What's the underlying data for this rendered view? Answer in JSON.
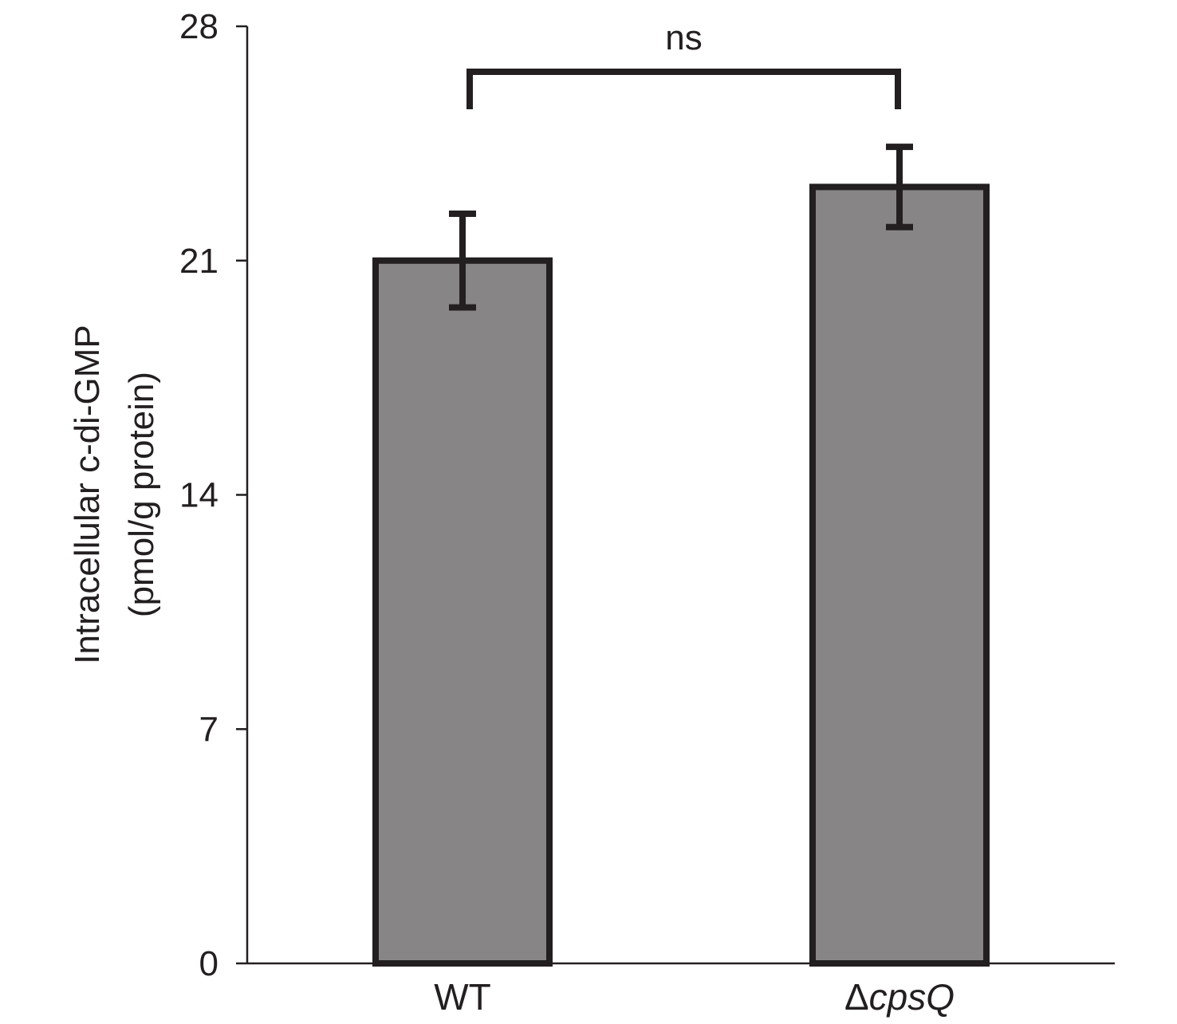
{
  "chart_data": {
    "type": "bar",
    "categories": [
      "WT",
      "ΔcpsQ"
    ],
    "category_labels": [
      {
        "prefix": "",
        "italic": "",
        "plain": "WT"
      },
      {
        "prefix": "Δ",
        "italic": "cpsQ",
        "plain": ""
      }
    ],
    "values": [
      21.0,
      23.2
    ],
    "errors": [
      1.4,
      1.2
    ],
    "ylabel": [
      "Intracellular c-di-GMP",
      "(pmol/g protein)"
    ],
    "xlabel": "",
    "ylim": [
      0,
      28
    ],
    "yticks": [
      0,
      7,
      14,
      21,
      28
    ],
    "grid": false,
    "significance": {
      "label": "ns",
      "between": [
        0,
        1
      ],
      "y": 26.8
    },
    "colors": {
      "bar_fill": "#878586",
      "bar_stroke": "#231f20",
      "axis": "#231f20"
    }
  }
}
